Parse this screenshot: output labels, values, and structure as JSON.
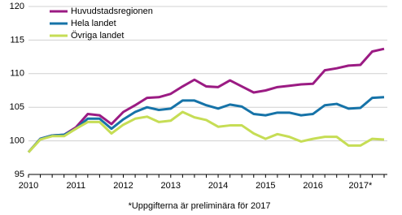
{
  "chart_data": {
    "type": "line",
    "categories": [
      "2010",
      null,
      null,
      null,
      "2011",
      null,
      null,
      null,
      "2012",
      null,
      null,
      null,
      "2013",
      null,
      null,
      null,
      "2014",
      null,
      null,
      null,
      "2015",
      null,
      null,
      null,
      "2016",
      null,
      null,
      null,
      "2017*",
      null,
      null
    ],
    "series": [
      {
        "name": "Huvudstadsregionen",
        "color": "#9b1b83",
        "values": [
          98.3,
          100.3,
          100.8,
          100.9,
          102.0,
          104.0,
          103.8,
          102.5,
          104.3,
          105.3,
          106.4,
          106.5,
          107.0,
          108.1,
          109.1,
          108.1,
          108.0,
          109.0,
          108.1,
          107.2,
          107.5,
          108.0,
          108.2,
          108.4,
          108.5,
          110.5,
          110.8,
          111.2,
          111.3,
          113.3,
          113.7
        ]
      },
      {
        "name": "Hela landet",
        "color": "#1673a8",
        "values": [
          98.3,
          100.3,
          100.8,
          100.9,
          101.8,
          103.3,
          103.3,
          101.8,
          103.2,
          104.3,
          105.0,
          104.6,
          104.8,
          106.0,
          106.0,
          105.3,
          104.8,
          105.4,
          105.1,
          104.0,
          103.8,
          104.2,
          104.2,
          103.8,
          104.0,
          105.3,
          105.5,
          104.8,
          104.9,
          106.4,
          106.5
        ]
      },
      {
        "name": "Övriga landet",
        "color": "#c6dd55",
        "values": [
          98.3,
          100.2,
          100.7,
          100.7,
          101.8,
          102.8,
          102.8,
          101.1,
          102.4,
          103.3,
          103.6,
          102.8,
          103.0,
          104.3,
          103.5,
          103.1,
          102.1,
          102.3,
          102.3,
          101.1,
          100.3,
          101.0,
          100.6,
          99.9,
          100.3,
          100.6,
          100.6,
          99.3,
          99.3,
          100.3,
          100.2
        ]
      }
    ],
    "ylim": [
      95,
      120
    ],
    "yticks": [
      95,
      100,
      105,
      110,
      115,
      120
    ],
    "grid": true,
    "legend": "top-left",
    "footnote": "*Uppgifterna är preliminära för 2017"
  }
}
